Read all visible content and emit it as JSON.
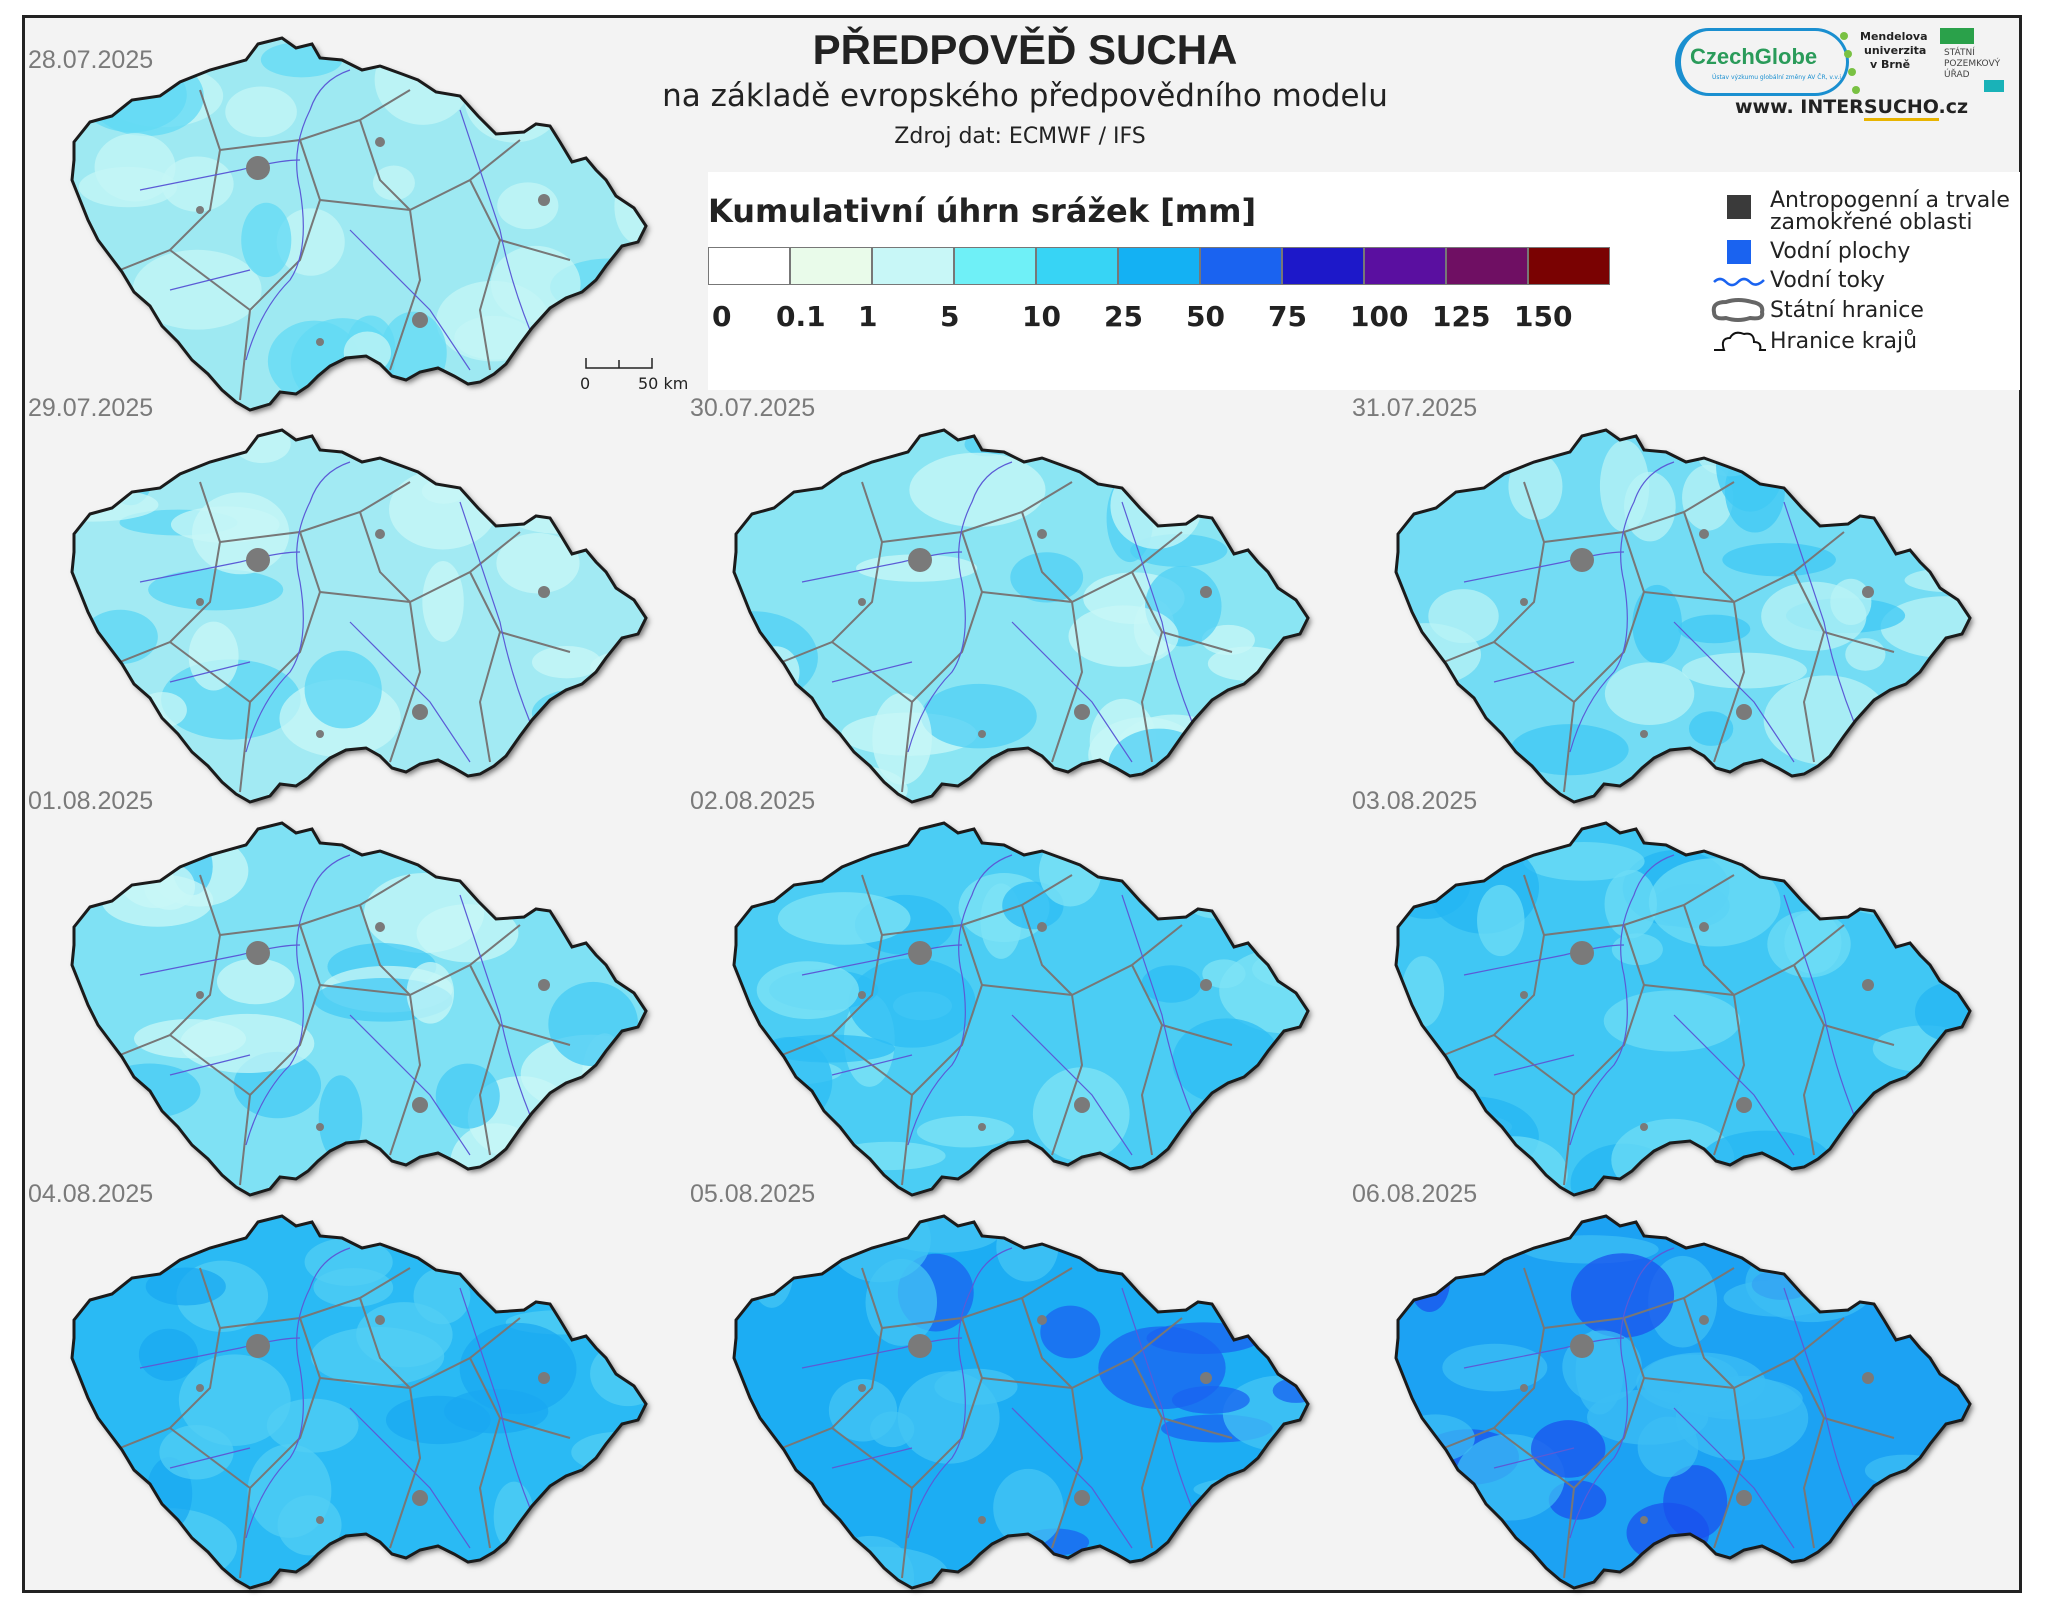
{
  "header": {
    "title": "PŘEDPOVĚĎ SUCHA",
    "subtitle": "na základě evropského předpovědního modelu",
    "source": "Zdroj dat: ECMWF / IFS"
  },
  "logos": {
    "czechglobe": "CzechGlobe",
    "czechglobe_small": "Ústav výzkumu globální změny AV ČR, v.v.i.",
    "mendel_line1": "Mendelova",
    "mendel_line2": "univerzita",
    "mendel_line3": "v Brně",
    "spu_line1": "STÁTNÍ",
    "spu_line2": "POZEMKOVÝ",
    "spu_line3": "ÚŘAD",
    "intersucho_prefix": "www. INTER",
    "intersucho_bold": "SUCHO",
    "intersucho_suffix": ".cz"
  },
  "legend": {
    "title": "Kumulativní úhrn srážek [mm]",
    "colors": [
      "#ffffff",
      "#e9fbea",
      "#c8f7f7",
      "#6ff0f7",
      "#37d4f5",
      "#14b1f3",
      "#1a63f0",
      "#1d18c9",
      "#5a0fa0",
      "#6f0f63",
      "#7a0202"
    ],
    "ticks": [
      "0",
      "0.1",
      "1",
      "5",
      "10",
      "25",
      "50",
      "75",
      "100",
      "125",
      "150"
    ],
    "items": {
      "anthropogenic_line1": "Antropogenní a trvale",
      "anthropogenic_line2": "zamokřené oblasti",
      "water_bodies": "Vodní plochy",
      "rivers": "Vodní toky",
      "state_border": "Státní hranice",
      "region_border": "Hranice krajů"
    },
    "scalebar": {
      "zero": "0",
      "label": "50 km"
    }
  },
  "maps": [
    {
      "date": "28.07.2025",
      "level": 0,
      "base": "#9ee9f2",
      "patch": "#c4f5f6",
      "patch2": "#62d9f4"
    },
    {
      "date": "29.07.2025",
      "level": 1,
      "base": "#a2eaf3",
      "patch": "#c8f7f7",
      "patch2": "#5ad6f4"
    },
    {
      "date": "30.07.2025",
      "level": 1,
      "base": "#8ae5f3",
      "patch": "#c8f7f7",
      "patch2": "#4fcff4"
    },
    {
      "date": "31.07.2025",
      "level": 2,
      "base": "#73dcf4",
      "patch": "#b8f3f6",
      "patch2": "#3fc8f4"
    },
    {
      "date": "01.08.2025",
      "level": 2,
      "base": "#7fe1f4",
      "patch": "#c8f7f7",
      "patch2": "#44caf4"
    },
    {
      "date": "02.08.2025",
      "level": 3,
      "base": "#4ccdf4",
      "patch": "#7fe3f5",
      "patch2": "#2cbcf4"
    },
    {
      "date": "03.08.2025",
      "level": 3,
      "base": "#40c7f4",
      "patch": "#6ddcf5",
      "patch2": "#24b6f3"
    },
    {
      "date": "04.08.2025",
      "level": 4,
      "base": "#2cbaf4",
      "patch": "#51cdf4",
      "patch2": "#1aa8f2"
    },
    {
      "date": "05.08.2025",
      "level": 5,
      "base": "#1fadf3",
      "patch": "#44c6f4",
      "patch2": "#1a63f0"
    },
    {
      "date": "06.08.2025",
      "level": 6,
      "base": "#1aa2f3",
      "patch": "#3cbef4",
      "patch2": "#1a52ee"
    }
  ]
}
